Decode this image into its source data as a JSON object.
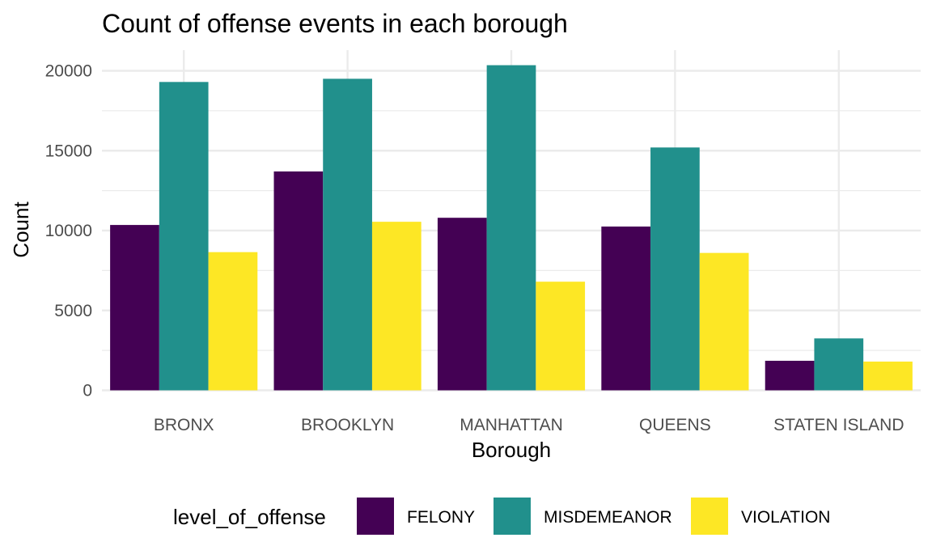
{
  "chart_data": {
    "type": "bar",
    "title": "Count of offense events in each borough",
    "xlabel": "Borough",
    "ylabel": "Count",
    "categories": [
      "BRONX",
      "BROOKLYN",
      "MANHATTAN",
      "QUEENS",
      "STATEN ISLAND"
    ],
    "series": [
      {
        "name": "FELONY",
        "color": "#440154",
        "values": [
          10350,
          13700,
          10800,
          10250,
          1850
        ]
      },
      {
        "name": "MISDEMEANOR",
        "color": "#21908C",
        "values": [
          19300,
          19500,
          20350,
          15200,
          3250
        ]
      },
      {
        "name": "VIOLATION",
        "color": "#FDE725",
        "values": [
          8650,
          10550,
          6800,
          8600,
          1800
        ]
      }
    ],
    "ylim": [
      0,
      21000
    ],
    "yticks": [
      0,
      5000,
      10000,
      15000,
      20000
    ],
    "legend": {
      "title": "level_of_offense",
      "position": "bottom"
    },
    "grid": true
  }
}
